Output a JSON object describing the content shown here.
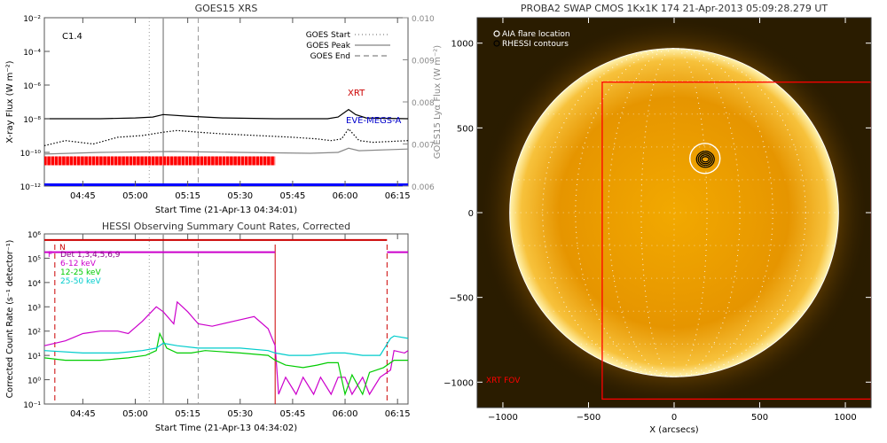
{
  "chart_data": [
    {
      "type": "line",
      "title": "GOES15 XRS",
      "flare_class": "C1.4",
      "xlabel": "Start Time (21-Apr-13 04:34:01)",
      "ylabel": "X-ray Flux (W m⁻²)",
      "y2label": "GOES15 Lyα Flux (W m⁻²)",
      "x_ticks": [
        "04:45",
        "05:00",
        "05:15",
        "05:30",
        "05:45",
        "06:00",
        "06:15"
      ],
      "x_tick_minutes": [
        45,
        60,
        75,
        90,
        105,
        120,
        135
      ],
      "xlim_minutes": [
        34,
        138
      ],
      "y_scale": "log",
      "y_exponents": [
        -12,
        -10,
        -8,
        -6,
        -4,
        -2
      ],
      "y_tick_labels": [
        "10⁻¹²",
        "10⁻¹⁰",
        "10⁻⁸",
        "10⁻⁶",
        "10⁻⁴",
        "10⁻²"
      ],
      "y2_ticks": [
        "0.006",
        "0.007",
        "0.008",
        "0.009",
        "0.010"
      ],
      "y2_tick_values": [
        0.006,
        0.007,
        0.008,
        0.009,
        0.01
      ],
      "legend": {
        "position": "top-right",
        "entries": [
          {
            "label": "GOES Start",
            "style": "dotted",
            "color": "#999999"
          },
          {
            "label": "GOES Peak",
            "style": "solid",
            "color": "#999999"
          },
          {
            "label": "GOES End",
            "style": "dashed",
            "color": "#999999"
          }
        ]
      },
      "event_lines_minutes": {
        "start": 64,
        "peak": 68,
        "end": 78
      },
      "annotations": [
        {
          "text": "XRT",
          "color": "#cc0000"
        },
        {
          "text": "EVE-MEGS-A",
          "color": "#0000cc"
        }
      ],
      "series": [
        {
          "color": "#000000",
          "axis": "left",
          "x": [
            34,
            50,
            60,
            65,
            68,
            75,
            85,
            100,
            115,
            118,
            121,
            123,
            126,
            138
          ],
          "log_y": [
            -8.0,
            -8.0,
            -7.95,
            -7.9,
            -7.75,
            -7.85,
            -7.95,
            -8.0,
            -8.0,
            -7.9,
            -7.45,
            -7.75,
            -7.95,
            -8.0
          ]
        },
        {
          "color": "#000000",
          "axis": "left",
          "style": "dotted",
          "x": [
            34,
            40,
            48,
            55,
            62,
            68,
            72,
            78,
            85,
            95,
            105,
            112,
            116,
            119,
            121,
            124,
            128,
            138
          ],
          "log_y": [
            -9.6,
            -9.3,
            -9.5,
            -9.1,
            -9.0,
            -8.8,
            -8.7,
            -8.8,
            -8.9,
            -9.0,
            -9.1,
            -9.2,
            -9.3,
            -9.2,
            -8.6,
            -9.3,
            -9.4,
            -9.3
          ]
        },
        {
          "color": "#888888",
          "axis": "left",
          "x": [
            34,
            50,
            70,
            90,
            110,
            118,
            121,
            124,
            138
          ],
          "log_y": [
            -10.1,
            -10.0,
            -9.95,
            -10.0,
            -10.05,
            -10.0,
            -9.75,
            -9.9,
            -9.8
          ]
        }
      ],
      "coverage_bar": {
        "color": "#ff0000",
        "x_start": 34,
        "x_end": 100,
        "log_y": -10.5
      },
      "baseline": {
        "color": "#0000ff",
        "log_y": -12
      }
    },
    {
      "type": "line",
      "title": "HESSI Observing Summary Count Rates, Corrected",
      "xlabel": "Start Time (21-Apr-13 04:34:02)",
      "ylabel": "Corrected Count Rate (s⁻¹ detector⁻¹)",
      "x_ticks": [
        "04:45",
        "05:00",
        "05:15",
        "05:30",
        "05:45",
        "06:00",
        "06:15"
      ],
      "x_tick_minutes": [
        45,
        60,
        75,
        90,
        105,
        120,
        135
      ],
      "xlim_minutes": [
        34,
        138
      ],
      "y_scale": "log",
      "y_exponents": [
        -1,
        0,
        1,
        2,
        3,
        4,
        5,
        6
      ],
      "y_tick_labels": [
        "10⁻¹",
        "10⁰",
        "10¹",
        "10²",
        "10³",
        "10⁴",
        "10⁵",
        "10⁶"
      ],
      "state_labels": [
        {
          "text": "N",
          "color": "#cc0000"
        },
        {
          "text": "F",
          "color": "#cc00cc"
        }
      ],
      "legend": {
        "position": "top-left",
        "entries": [
          {
            "label": "Det 1,3,4,5,6,9",
            "color": "#880088"
          },
          {
            "label": "6-12 keV",
            "color": "#cc00cc"
          },
          {
            "label": "12-25 keV",
            "color": "#00cc00"
          },
          {
            "label": "25-50 keV",
            "color": "#00cccc"
          }
        ]
      },
      "event_lines_minutes": {
        "start": 64,
        "peak": 68,
        "end": 78
      },
      "night_lines_minutes": [
        37,
        132
      ],
      "night_start_minute": 100,
      "series": [
        {
          "name": "6-12 keV",
          "color": "#cc00cc",
          "x": [
            34,
            40,
            45,
            50,
            55,
            58,
            62,
            66,
            68,
            71,
            72,
            75,
            78,
            82,
            88,
            94,
            98,
            100,
            101,
            103,
            106,
            108,
            111,
            113,
            116,
            118,
            120,
            122,
            125,
            127,
            130,
            133,
            134,
            137,
            138
          ],
          "log_y": [
            1.4,
            1.6,
            1.9,
            2.0,
            2.0,
            1.9,
            2.4,
            3.0,
            2.8,
            2.3,
            3.2,
            2.8,
            2.3,
            2.2,
            2.4,
            2.6,
            2.1,
            1.4,
            -0.6,
            0.1,
            -0.6,
            0.1,
            -0.6,
            0.1,
            -0.6,
            0.1,
            0.1,
            -0.6,
            0.1,
            -0.6,
            0.1,
            0.4,
            1.2,
            1.1,
            1.2
          ]
        },
        {
          "name": "12-25 keV",
          "color": "#00cc00",
          "x": [
            34,
            40,
            50,
            58,
            63,
            66,
            67,
            69,
            72,
            76,
            80,
            90,
            98,
            100,
            103,
            108,
            112,
            115,
            118,
            120,
            122,
            125,
            127,
            131,
            134,
            138
          ],
          "log_y": [
            0.9,
            0.8,
            0.8,
            0.9,
            1.0,
            1.2,
            1.9,
            1.3,
            1.1,
            1.1,
            1.2,
            1.1,
            1.0,
            0.8,
            0.6,
            0.5,
            0.6,
            0.7,
            0.7,
            -0.6,
            0.2,
            -0.6,
            0.3,
            0.5,
            0.8,
            0.8
          ]
        },
        {
          "name": "25-50 keV",
          "color": "#00cccc",
          "x": [
            34,
            45,
            55,
            62,
            66,
            68,
            72,
            78,
            90,
            98,
            100,
            104,
            110,
            116,
            120,
            125,
            130,
            133,
            134,
            138
          ],
          "log_y": [
            1.2,
            1.1,
            1.1,
            1.2,
            1.3,
            1.5,
            1.4,
            1.3,
            1.3,
            1.2,
            1.1,
            1.0,
            1.0,
            1.1,
            1.1,
            1.0,
            1.0,
            1.7,
            1.8,
            1.7
          ]
        }
      ],
      "state_bars": [
        {
          "color": "#cc0000",
          "x_start": 34,
          "x_end": 132,
          "log_y": 5.75
        },
        {
          "color": "#cc00cc",
          "x_start": 34,
          "x_end": 100,
          "log_y": 5.25
        },
        {
          "color": "#cc00cc",
          "x_start": 132,
          "x_end": 138,
          "log_y": 5.25
        }
      ]
    },
    {
      "type": "image",
      "title": "PROBA2 SWAP CMOS 1Kx1K 174 21-Apr-2013 05:09:28.279 UT",
      "xlabel": "X (arcsecs)",
      "ylabel": "",
      "xlim": [
        -1150,
        1150
      ],
      "ylim": [
        -1150,
        1150
      ],
      "x_ticks": [
        -1000,
        -500,
        0,
        500,
        1000
      ],
      "y_ticks": [
        -1000,
        -500,
        0,
        500,
        1000
      ],
      "x_tick_labels": [
        "−1000",
        "−500",
        "0",
        "500",
        "1000"
      ],
      "y_tick_labels": [
        "−1000",
        "−500",
        "0",
        "500",
        "1000"
      ],
      "solar_radius_arcsec": 960,
      "legend": {
        "position": "top-left",
        "entries": [
          {
            "label": "AIA flare location",
            "color": "#ffffff",
            "marker": "open-circle"
          },
          {
            "label": "RHESSI contours",
            "color": "#000000",
            "marker": "open-circle"
          }
        ]
      },
      "flare_location": {
        "x": 180,
        "y": 320
      },
      "fov": {
        "label": "XRT FOV",
        "color": "#ff0000",
        "x_min": -420,
        "x_max": 1150,
        "y_min": -1100,
        "y_max": 770
      }
    }
  ]
}
